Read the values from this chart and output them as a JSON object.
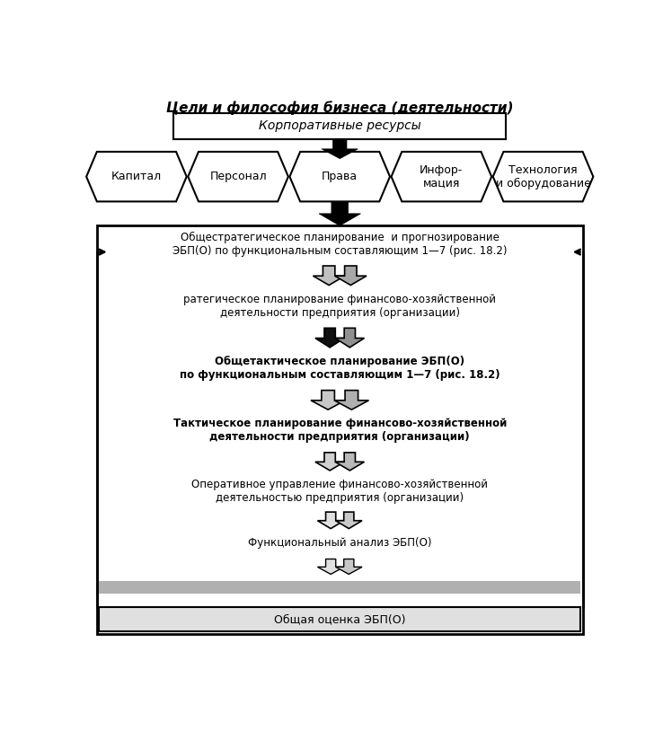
{
  "title": "Цели и философия бизнеса (деятельности)",
  "corp_resources": "Корпоративные ресурсы",
  "hexagons": [
    "Капитал",
    "Персонал",
    "Права",
    "Инфор-\nмация",
    "Технология\nи оборудование"
  ],
  "box_texts": [
    "Общестратегическое планирование  и прогнозирование\nЭБП(О) по функциональным составляющим 1—7 (рис. 18.2)",
    "ратегическое планирование финансово-хозяйственной\nдеятельности предприятия (организации)",
    "Общетактическое планирование ЭБП(О)\nпо функциональным составляющим 1—7 (рис. 18.2)",
    "Тактическое планирование финансово-хозяйственной\nдеятельности предприятия (организации)",
    "Оперативное управление финансово-хозяйственной\nдеятельностью предприятия (организации)",
    "Функциональный анализ ЭБП(О)",
    "Общая оценка ЭБП(О)"
  ],
  "bg_color": "#ffffff",
  "text_color": "#000000"
}
